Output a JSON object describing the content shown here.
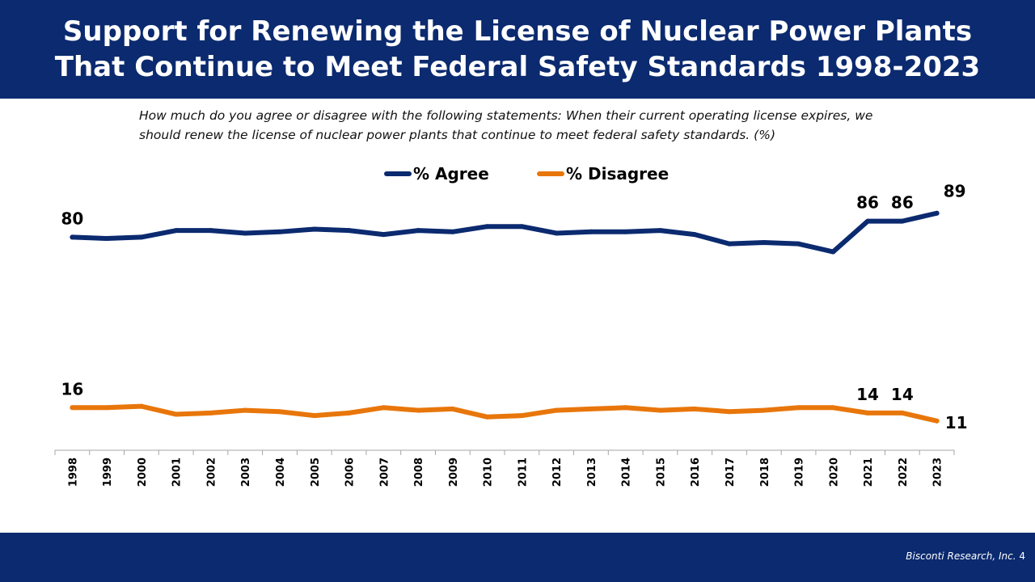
{
  "header": {
    "title_line1": "Support for Renewing the License of Nuclear Power Plants",
    "title_line2": "That Continue to Meet Federal Safety Standards 1998-2023"
  },
  "question": "How much do you agree or disagree with the following statements: When their current operating license expires, we should renew the license of nuclear power plants that continue to meet federal safety standards. (%)",
  "footer": {
    "credit": "Bisconti Research, Inc.",
    "page_number": "4"
  },
  "chart_data": {
    "type": "line",
    "title": "",
    "xlabel": "",
    "ylabel": "",
    "ylim": [
      0,
      100
    ],
    "grid": false,
    "legend_position": "top",
    "categories": [
      "1998",
      "1999",
      "2000",
      "2001",
      "2002",
      "2003",
      "2004",
      "2005",
      "2006",
      "2007",
      "2008",
      "2009",
      "2010",
      "2011",
      "2012",
      "2013",
      "2014",
      "2015",
      "2016",
      "2017",
      "2018",
      "2019",
      "2020",
      "2021",
      "2022",
      "2023"
    ],
    "series": [
      {
        "name": "% Agree",
        "color": "#0b2a6f",
        "values": [
          80,
          79.5,
          80,
          82.5,
          82.5,
          81.5,
          82,
          83,
          82.5,
          81,
          82.5,
          82,
          84,
          84,
          81.5,
          82,
          82,
          82.5,
          81,
          77.5,
          78,
          77.5,
          74.5,
          86,
          86,
          89
        ],
        "labels": [
          {
            "index": 0,
            "text": "80"
          },
          {
            "index": 23,
            "text": "86"
          },
          {
            "index": 24,
            "text": "86"
          },
          {
            "index": 25,
            "text": "89"
          }
        ]
      },
      {
        "name": "% Disagree",
        "color": "#e8760a",
        "values": [
          16,
          16,
          16.5,
          13.5,
          14,
          15,
          14.5,
          13,
          14,
          16,
          15,
          15.5,
          12.5,
          13,
          15,
          15.5,
          16,
          15,
          15.5,
          14.5,
          15,
          16,
          16,
          14,
          14,
          11
        ],
        "labels": [
          {
            "index": 0,
            "text": "16"
          },
          {
            "index": 23,
            "text": "14"
          },
          {
            "index": 24,
            "text": "14"
          },
          {
            "index": 25,
            "text": "11"
          }
        ]
      }
    ]
  }
}
